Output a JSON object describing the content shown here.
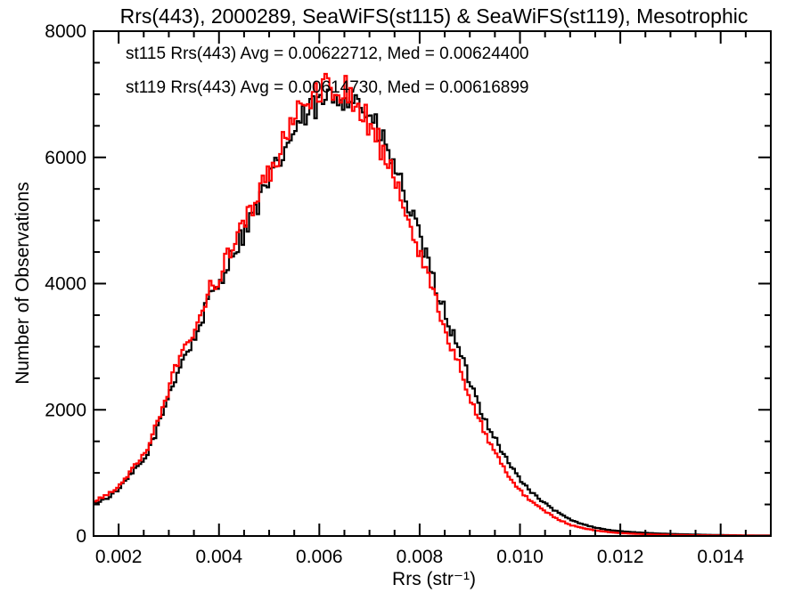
{
  "chart": {
    "title": "Rrs(443), 2000289, SeaWiFS(st115) & SeaWiFS(st119), Mesotrophic",
    "background_color": "#ffffff",
    "frame_color": "#000000"
  },
  "legend": {
    "entries": [
      {
        "series": "st115",
        "text": "st115 Rrs(443) Avg = 0.00622712, Med = 0.00624400",
        "color": "#000000"
      },
      {
        "series": "st119",
        "text": "st119 Rrs(443) Avg = 0.00614730, Med = 0.00616899",
        "color": "#ff0000"
      }
    ]
  },
  "axes": {
    "x": {
      "label": "Rrs (str⁻¹)",
      "min": 0.0015,
      "max": 0.015,
      "major_ticks": [
        {
          "value": 0.002,
          "label": "0.002"
        },
        {
          "value": 0.004,
          "label": "0.004"
        },
        {
          "value": 0.006,
          "label": "0.006"
        },
        {
          "value": 0.008,
          "label": "0.008"
        },
        {
          "value": 0.01,
          "label": "0.010"
        },
        {
          "value": 0.012,
          "label": "0.012"
        },
        {
          "value": 0.014,
          "label": "0.014"
        }
      ],
      "minor_step": 0.0005
    },
    "y": {
      "label": "Number of Observations",
      "min": 0,
      "max": 8000,
      "major_ticks": [
        {
          "value": 0,
          "label": "0"
        },
        {
          "value": 2000,
          "label": "2000"
        },
        {
          "value": 4000,
          "label": "4000"
        },
        {
          "value": 6000,
          "label": "6000"
        },
        {
          "value": 8000,
          "label": "8000"
        }
      ],
      "minor_step": 500
    }
  },
  "chart_data": {
    "type": "histogram-step",
    "title": "Rrs(443), 2000289, SeaWiFS(st115) & SeaWiFS(st119), Mesotrophic",
    "xlabel": "Rrs (str⁻¹)",
    "ylabel": "Number of Observations",
    "xlim": [
      0.0015,
      0.015
    ],
    "ylim": [
      0,
      8000
    ],
    "grid": false,
    "legend_position": "top-left-inside",
    "bin_width": 5e-05,
    "x_envelope": [
      0.0015,
      0.00175,
      0.002,
      0.00225,
      0.0025,
      0.00275,
      0.003,
      0.00325,
      0.0035,
      0.00375,
      0.004,
      0.00425,
      0.0045,
      0.00475,
      0.005,
      0.00525,
      0.0055,
      0.00575,
      0.006,
      0.00625,
      0.0065,
      0.00675,
      0.007,
      0.00725,
      0.0075,
      0.00775,
      0.008,
      0.00825,
      0.0085,
      0.00875,
      0.009,
      0.00925,
      0.0095,
      0.00975,
      0.01,
      0.01025,
      0.0105,
      0.01075,
      0.011,
      0.01125,
      0.0115,
      0.01175,
      0.012,
      0.01225,
      0.0125,
      0.01275,
      0.013,
      0.01325,
      0.0135,
      0.01375,
      0.014,
      0.01425,
      0.0145,
      0.01475,
      0.015
    ],
    "series": [
      {
        "name": "st115 SeaWiFS Rrs(443)",
        "color": "#000000",
        "avg": 0.00622712,
        "med": 0.006244,
        "values": [
          520,
          600,
          760,
          1000,
          1220,
          1700,
          2300,
          2800,
          3130,
          3700,
          4050,
          4500,
          4850,
          5250,
          5650,
          6050,
          6450,
          6700,
          6850,
          6950,
          7000,
          6900,
          6600,
          6250,
          5800,
          5250,
          4650,
          4050,
          3500,
          2950,
          2400,
          1900,
          1520,
          1150,
          880,
          660,
          500,
          360,
          250,
          180,
          130,
          95,
          75,
          60,
          48,
          40,
          32,
          27,
          22,
          18,
          15,
          12,
          10,
          9,
          8
        ]
      },
      {
        "name": "st119 SeaWiFS Rrs(443)",
        "color": "#ff0000",
        "avg": 0.0061473,
        "med": 0.00616899,
        "values": [
          560,
          650,
          820,
          1060,
          1300,
          1800,
          2400,
          2950,
          3250,
          3850,
          4150,
          4600,
          4950,
          5400,
          5800,
          6250,
          6650,
          6900,
          7050,
          7150,
          7050,
          6850,
          6500,
          6100,
          5600,
          5050,
          4450,
          3850,
          3250,
          2700,
          2150,
          1680,
          1300,
          950,
          700,
          510,
          380,
          260,
          170,
          120,
          85,
          60,
          45,
          35,
          28,
          22,
          18,
          15,
          12,
          10,
          9,
          8,
          7,
          6,
          6
        ]
      }
    ],
    "jitter": {
      "amplitude_frac": 0.035,
      "seeds": [
        97,
        193
      ]
    }
  }
}
